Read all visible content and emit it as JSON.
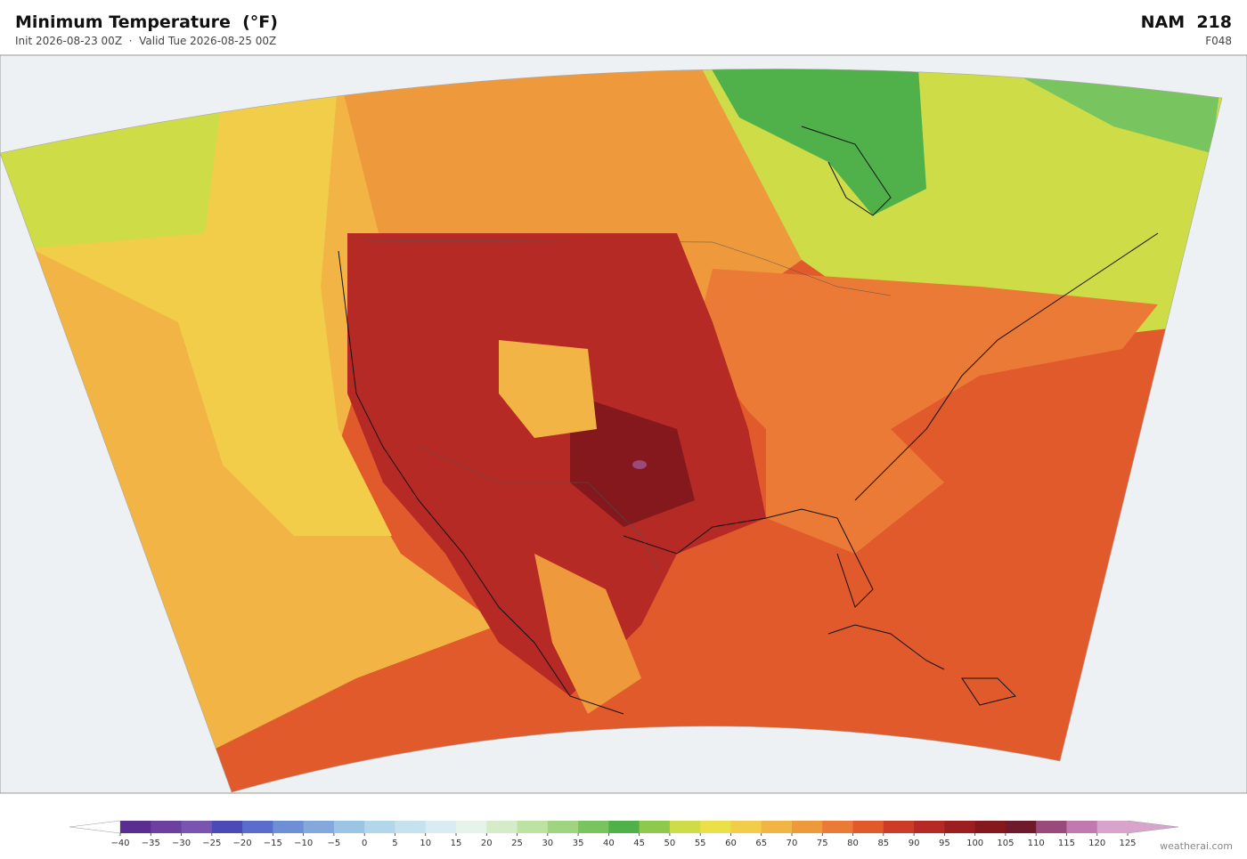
{
  "header": {
    "title": "Minimum Temperature  (°F)",
    "subtitle": "Init 2026-08-23 00Z  ·  Valid Tue 2026-08-25 00Z",
    "model": "NAM  218",
    "forecast_hour": "F048"
  },
  "colorbar": {
    "ticks": [
      {
        "value": -40,
        "label": "−40"
      },
      {
        "value": -35,
        "label": "−35"
      },
      {
        "value": -30,
        "label": "−30"
      },
      {
        "value": -25,
        "label": "−25"
      },
      {
        "value": -20,
        "label": "−20"
      },
      {
        "value": -15,
        "label": "−15"
      },
      {
        "value": -10,
        "label": "−10"
      },
      {
        "value": -5,
        "label": "−5"
      },
      0,
      5,
      10,
      15,
      20,
      25,
      30,
      35,
      40,
      45,
      50,
      55,
      60,
      65,
      70,
      75,
      80,
      85,
      90,
      95,
      100,
      105,
      110,
      115,
      120,
      125
    ],
    "colors": [
      "#5a2d91",
      "#6c3fa0",
      "#7a55b0",
      "#4b4bb8",
      "#5a6dcc",
      "#6e8fd6",
      "#84a8dc",
      "#9cc4e4",
      "#b2d6ea",
      "#c6e2ef",
      "#d8ecf2",
      "#e6f3ea",
      "#d4ecc8",
      "#bde2a2",
      "#9fd481",
      "#78c560",
      "#50b04a",
      "#8fc94b",
      "#cddc47",
      "#ebe04a",
      "#f2cd4a",
      "#f2b545",
      "#ee9a3c",
      "#ea7a35",
      "#e05a2c",
      "#cc3d28",
      "#b62a25",
      "#9c1e20",
      "#84181c",
      "#6e1a2a",
      "#9a4a7a",
      "#c07ab0",
      "#d8a4cc"
    ],
    "under_color": "#ffffff",
    "over_color": "#d8a4cc"
  },
  "footer": {
    "credit": "weatherai.com"
  }
}
